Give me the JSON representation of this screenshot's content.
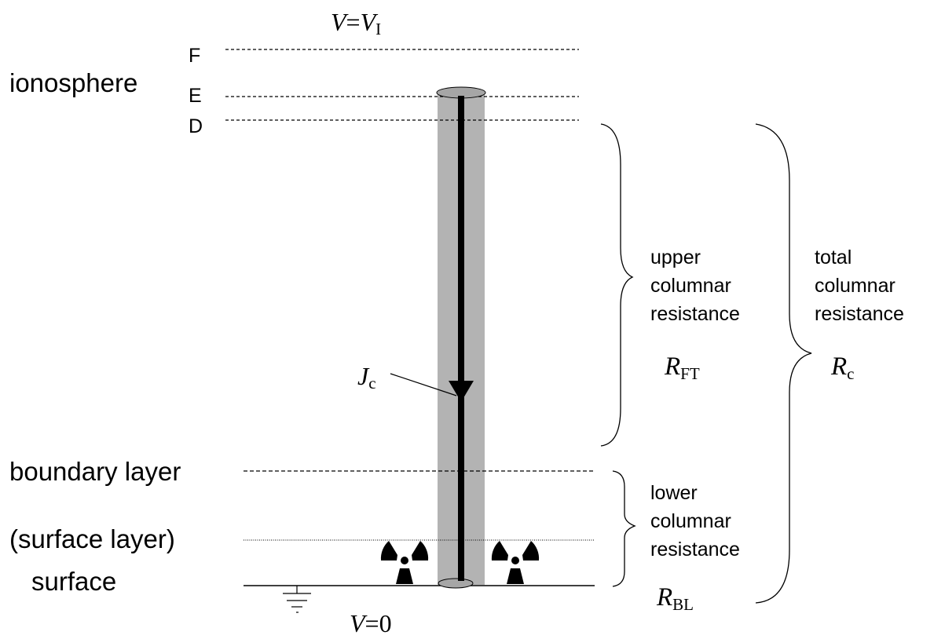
{
  "top_potential": {
    "var": "V",
    "eq": "=",
    "var2": "V",
    "sub": "I"
  },
  "bottom_potential": {
    "var": "V",
    "eq": "=0"
  },
  "layers": {
    "F": "F",
    "E": "E",
    "D": "D",
    "ionosphere": "ionosphere",
    "boundary": "boundary layer",
    "surface_layer": "(surface layer)",
    "surface": "surface"
  },
  "current": {
    "var": "J",
    "sub": "c"
  },
  "upper": {
    "lines": [
      "upper",
      "columnar",
      "resistance"
    ],
    "symbol": {
      "var": "R",
      "sub": "FT"
    }
  },
  "total": {
    "lines": [
      "total",
      "columnar",
      "resistance"
    ],
    "symbol": {
      "var": "R",
      "sub": "c"
    }
  },
  "lower": {
    "lines": [
      "lower",
      "columnar",
      "resistance"
    ],
    "symbol": {
      "var": "R",
      "sub": "BL"
    }
  },
  "colors": {
    "column": "#b3b3b3",
    "ink": "#000000",
    "disc": "#a6a6a6"
  },
  "icons": [
    "radiation-icon",
    "ground-icon"
  ]
}
